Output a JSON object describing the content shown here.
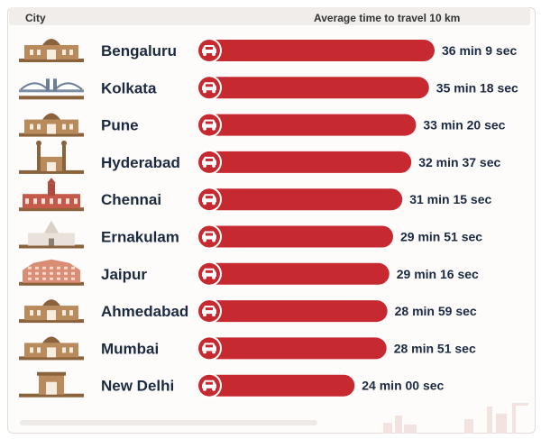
{
  "header": {
    "city_label": "City",
    "time_label": "Average time to travel 10 km"
  },
  "colors": {
    "bar": "#c62a30",
    "bar_dark": "#a81f25",
    "icon_circle": "#c62a30",
    "text": "#1b2a41",
    "landmark": "#b88a5c"
  },
  "chart_data": {
    "type": "bar",
    "orientation": "horizontal",
    "categories": [
      "Bengaluru",
      "Kolkata",
      "Pune",
      "Hyderabad",
      "Chennai",
      "Ernakulam",
      "Jaipur",
      "Ahmedabad",
      "Mumbai",
      "New Delhi"
    ],
    "values": [
      36.15,
      35.3,
      33.33,
      32.62,
      31.25,
      29.85,
      29.27,
      28.98,
      28.85,
      24.0
    ],
    "value_labels": [
      "36 min 9 sec",
      "35 min 18 sec",
      "33 min 20 sec",
      "32 min 37 sec",
      "31 min 15 sec",
      "29 min 51 sec",
      "29 min 16 sec",
      "28 min 59 sec",
      "28 min 51 sec",
      "24 min 00 sec"
    ],
    "unit": "minutes",
    "xlim": [
      0,
      36.15
    ],
    "icons": [
      "palace-icon",
      "bridge-icon",
      "fort-gate-icon",
      "charminar-icon",
      "station-icon",
      "church-icon",
      "hawa-mahal-icon",
      "gate-icon",
      "gateway-icon",
      "india-gate-icon"
    ]
  }
}
